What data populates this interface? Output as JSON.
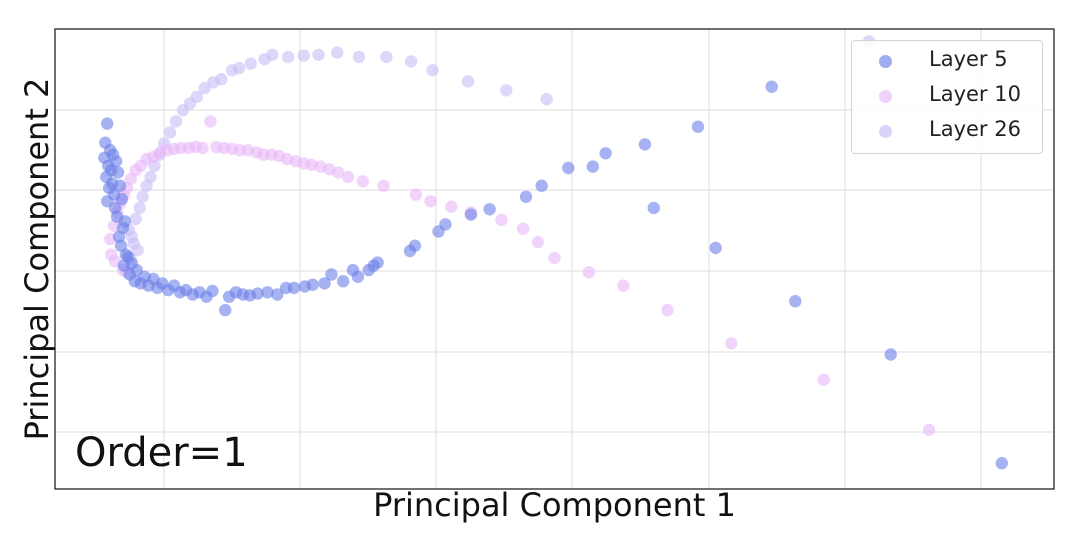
{
  "chart_data": {
    "type": "scatter",
    "title": "",
    "xlabel": "Principal Component 1",
    "ylabel": "Principal Component 2",
    "annotation": "Order=1",
    "xlim": [
      0,
      100
    ],
    "ylim": [
      0,
      100
    ],
    "grid": true,
    "legend_position": "top-right",
    "series": [
      {
        "name": "Layer 5",
        "color": "#6b7fe8",
        "points": [
          [
            4.5,
            80.5
          ],
          [
            4.3,
            76.2
          ],
          [
            4.8,
            74.5
          ],
          [
            4.2,
            72.8
          ],
          [
            4.6,
            71.0
          ],
          [
            5.1,
            73.5
          ],
          [
            4.9,
            70.0
          ],
          [
            5.4,
            72.0
          ],
          [
            4.4,
            68.5
          ],
          [
            5.0,
            67.0
          ],
          [
            5.6,
            69.5
          ],
          [
            4.7,
            66.0
          ],
          [
            5.2,
            64.5
          ],
          [
            5.8,
            66.5
          ],
          [
            4.5,
            63.0
          ],
          [
            5.3,
            61.5
          ],
          [
            6.0,
            63.5
          ],
          [
            5.5,
            59.5
          ],
          [
            6.1,
            57.0
          ],
          [
            5.7,
            55.0
          ],
          [
            6.3,
            58.5
          ],
          [
            5.9,
            53.0
          ],
          [
            6.4,
            51.0
          ],
          [
            6.2,
            48.5
          ],
          [
            6.6,
            50.5
          ],
          [
            6.8,
            46.5
          ],
          [
            7.0,
            49.0
          ],
          [
            7.3,
            45.0
          ],
          [
            7.5,
            47.5
          ],
          [
            7.9,
            44.5
          ],
          [
            8.3,
            46.0
          ],
          [
            8.7,
            44.0
          ],
          [
            9.2,
            45.5
          ],
          [
            9.6,
            43.5
          ],
          [
            10.1,
            44.5
          ],
          [
            10.7,
            43.0
          ],
          [
            11.3,
            44.0
          ],
          [
            11.9,
            42.5
          ],
          [
            12.5,
            43.0
          ],
          [
            13.2,
            42.0
          ],
          [
            13.9,
            42.5
          ],
          [
            14.6,
            41.5
          ],
          [
            15.2,
            42.8
          ],
          [
            16.5,
            38.5
          ],
          [
            16.9,
            41.5
          ],
          [
            17.6,
            42.5
          ],
          [
            18.3,
            42.0
          ],
          [
            19.0,
            41.8
          ],
          [
            19.8,
            42.2
          ],
          [
            20.8,
            42.5
          ],
          [
            21.8,
            42.0
          ],
          [
            22.7,
            43.5
          ],
          [
            23.5,
            43.5
          ],
          [
            24.6,
            43.8
          ],
          [
            25.4,
            44.2
          ],
          [
            26.6,
            44.5
          ],
          [
            27.3,
            46.5
          ],
          [
            28.5,
            45.0
          ],
          [
            29.5,
            47.5
          ],
          [
            30.0,
            46.0
          ],
          [
            31.1,
            47.5
          ],
          [
            31.6,
            48.5
          ],
          [
            32.0,
            49.2
          ],
          [
            35.3,
            51.8
          ],
          [
            35.8,
            53.0
          ],
          [
            38.2,
            56.2
          ],
          [
            38.9,
            57.8
          ],
          [
            41.5,
            60.0
          ],
          [
            43.4,
            61.2
          ],
          [
            47.1,
            64.0
          ],
          [
            48.7,
            66.5
          ],
          [
            51.4,
            70.5
          ],
          [
            53.9,
            70.8
          ],
          [
            55.2,
            73.8
          ],
          [
            59.2,
            75.8
          ],
          [
            64.6,
            79.8
          ],
          [
            72.1,
            88.8
          ],
          [
            60.1,
            61.5
          ],
          [
            66.4,
            52.5
          ],
          [
            74.5,
            40.5
          ],
          [
            84.2,
            28.5
          ],
          [
            95.5,
            4.0
          ]
        ]
      },
      {
        "name": "Layer 10",
        "color": "#e8b8f8",
        "points": [
          [
            4.8,
            54.5
          ],
          [
            5.2,
            57.5
          ],
          [
            4.9,
            51.0
          ],
          [
            5.5,
            60.5
          ],
          [
            5.8,
            62.5
          ],
          [
            6.2,
            64.5
          ],
          [
            5.3,
            49.5
          ],
          [
            6.5,
            66.0
          ],
          [
            6.9,
            68.0
          ],
          [
            7.4,
            70.0
          ],
          [
            7.9,
            71.0
          ],
          [
            6.1,
            47.5
          ],
          [
            8.5,
            72.5
          ],
          [
            9.2,
            73.0
          ],
          [
            9.9,
            74.0
          ],
          [
            10.6,
            74.5
          ],
          [
            11.3,
            74.8
          ],
          [
            12.0,
            75.0
          ],
          [
            12.8,
            75.0
          ],
          [
            13.5,
            75.3
          ],
          [
            14.2,
            75.0
          ],
          [
            15.0,
            81.0
          ],
          [
            15.6,
            75.2
          ],
          [
            16.4,
            75.0
          ],
          [
            17.2,
            74.8
          ],
          [
            18.0,
            74.5
          ],
          [
            18.8,
            74.5
          ],
          [
            19.7,
            74.0
          ],
          [
            20.4,
            73.5
          ],
          [
            21.2,
            73.5
          ],
          [
            22.0,
            73.2
          ],
          [
            22.8,
            72.5
          ],
          [
            23.7,
            72.0
          ],
          [
            24.5,
            71.5
          ],
          [
            25.3,
            71.2
          ],
          [
            26.2,
            70.8
          ],
          [
            27.1,
            70.2
          ],
          [
            28.0,
            69.5
          ],
          [
            29.0,
            68.5
          ],
          [
            30.5,
            67.5
          ],
          [
            32.6,
            66.5
          ],
          [
            35.9,
            64.5
          ],
          [
            37.4,
            63.0
          ],
          [
            39.5,
            61.8
          ],
          [
            41.5,
            60.5
          ],
          [
            44.6,
            58.8
          ],
          [
            46.8,
            56.8
          ],
          [
            48.3,
            53.8
          ],
          [
            50.0,
            50.2
          ],
          [
            53.5,
            47.0
          ],
          [
            57.0,
            44.0
          ],
          [
            61.5,
            38.5
          ],
          [
            68.0,
            31.0
          ],
          [
            77.4,
            22.8
          ],
          [
            88.1,
            11.5
          ]
        ]
      },
      {
        "name": "Layer 26",
        "color": "#c8bdf5",
        "points": [
          [
            6.5,
            47.0
          ],
          [
            6.9,
            50.0
          ],
          [
            7.2,
            53.5
          ],
          [
            6.7,
            56.5
          ],
          [
            7.4,
            59.0
          ],
          [
            7.8,
            61.5
          ],
          [
            7.0,
            55.0
          ],
          [
            8.1,
            64.0
          ],
          [
            7.6,
            52.0
          ],
          [
            8.5,
            66.5
          ],
          [
            8.9,
            68.5
          ],
          [
            9.3,
            71.0
          ],
          [
            9.8,
            73.5
          ],
          [
            10.3,
            76.0
          ],
          [
            10.9,
            78.5
          ],
          [
            11.5,
            81.0
          ],
          [
            12.2,
            83.5
          ],
          [
            12.9,
            85.0
          ],
          [
            13.6,
            86.5
          ],
          [
            14.4,
            88.5
          ],
          [
            15.3,
            89.8
          ],
          [
            16.1,
            90.5
          ],
          [
            17.2,
            92.5
          ],
          [
            17.9,
            93.0
          ],
          [
            19.1,
            94.0
          ],
          [
            20.5,
            95.0
          ],
          [
            21.3,
            96.0
          ],
          [
            22.9,
            95.5
          ],
          [
            24.5,
            95.8
          ],
          [
            26.0,
            96.0
          ],
          [
            27.9,
            96.5
          ],
          [
            30.1,
            95.5
          ],
          [
            32.9,
            95.5
          ],
          [
            35.4,
            94.5
          ],
          [
            37.6,
            92.5
          ],
          [
            41.2,
            90.0
          ],
          [
            45.1,
            88.0
          ],
          [
            49.2,
            86.0
          ],
          [
            82.0,
            99.0
          ]
        ]
      }
    ]
  }
}
